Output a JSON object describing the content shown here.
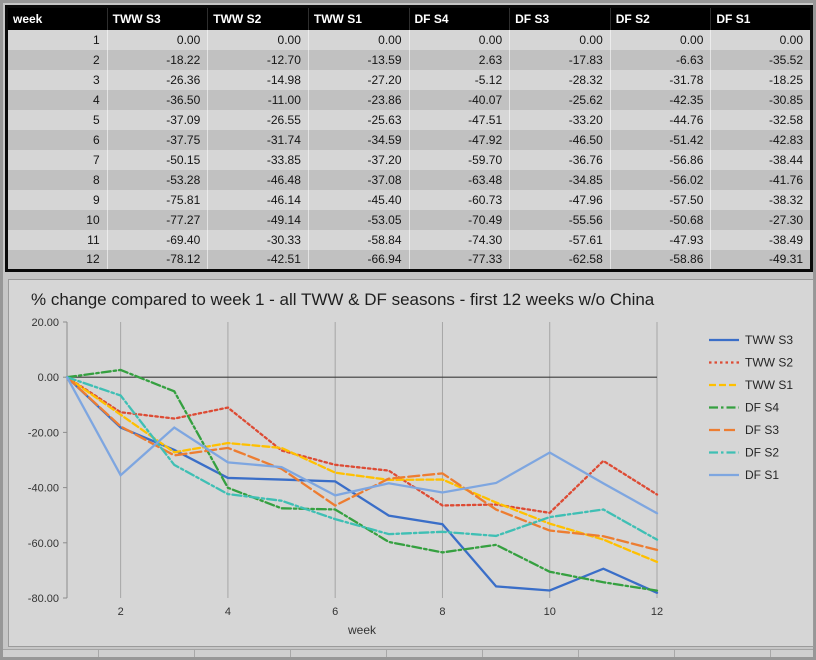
{
  "table": {
    "headers": [
      "week",
      "TWW S3",
      "TWW S2",
      "TWW S1",
      "DF S4",
      "DF S3",
      "DF S2",
      "DF S1"
    ]
  },
  "chart_data": {
    "type": "line",
    "title": "% change compared to week 1 - all TWW & DF seasons - first 12 weeks w/o China",
    "xlabel": "week",
    "ylabel": "",
    "x": [
      1,
      2,
      3,
      4,
      5,
      6,
      7,
      8,
      9,
      10,
      11,
      12
    ],
    "xticks": [
      2,
      4,
      6,
      8,
      10,
      12
    ],
    "yticks": [
      20,
      0,
      -20,
      -40,
      -60,
      -80
    ],
    "ytick_labels": [
      "20.00",
      "0.00",
      "-20.00",
      "-40.00",
      "-60.00",
      "-80.00"
    ],
    "ylim": [
      -80,
      20
    ],
    "grid": "vertical-only",
    "legend_position": "right",
    "series": [
      {
        "name": "TWW S3",
        "color": "#3a6ec8",
        "dash": "solid",
        "values": [
          0.0,
          -18.22,
          -26.36,
          -36.5,
          -37.09,
          -37.75,
          -50.15,
          -53.28,
          -75.81,
          -77.27,
          -69.4,
          -78.12
        ]
      },
      {
        "name": "TWW S2",
        "color": "#dd4b34",
        "dash": "dotted",
        "values": [
          0.0,
          -12.7,
          -14.98,
          -11.0,
          -26.55,
          -31.74,
          -33.85,
          -46.48,
          -46.14,
          -49.14,
          -30.33,
          -42.51
        ]
      },
      {
        "name": "TWW S1",
        "color": "#ffc000",
        "dash": "dashed",
        "values": [
          0.0,
          -13.59,
          -27.2,
          -23.86,
          -25.63,
          -34.59,
          -37.2,
          -37.08,
          -45.4,
          -53.05,
          -58.84,
          -66.94
        ]
      },
      {
        "name": "DF S4",
        "color": "#35a040",
        "dash": "dashdot",
        "values": [
          0.0,
          2.63,
          -5.12,
          -40.07,
          -47.51,
          -47.92,
          -59.7,
          -63.48,
          -60.73,
          -70.49,
          -74.3,
          -77.33
        ]
      },
      {
        "name": "DF S3",
        "color": "#ed7d31",
        "dash": "longdash",
        "values": [
          0.0,
          -17.83,
          -28.32,
          -25.62,
          -33.2,
          -46.5,
          -36.76,
          -34.85,
          -47.96,
          -55.56,
          -57.61,
          -62.58
        ]
      },
      {
        "name": "DF S2",
        "color": "#3fbfb4",
        "dash": "dashdot",
        "values": [
          0.0,
          -6.63,
          -31.78,
          -42.35,
          -44.76,
          -51.42,
          -56.86,
          -56.02,
          -57.5,
          -50.68,
          -47.93,
          -58.86
        ]
      },
      {
        "name": "DF S1",
        "color": "#7ea6e0",
        "dash": "solid",
        "values": [
          0.0,
          -35.52,
          -18.25,
          -30.85,
          -32.58,
          -42.83,
          -38.44,
          -41.76,
          -38.32,
          -27.3,
          -38.49,
          -49.31
        ]
      }
    ]
  },
  "colors": {
    "header_bg": "#000000",
    "header_text": "#ffffff",
    "row_odd": "#d6d6d6",
    "row_even": "#c1c1c1",
    "panel_bg": "#d6d6d6",
    "gridline": "#a6a6a6",
    "zero_line": "#3c3c3c"
  }
}
